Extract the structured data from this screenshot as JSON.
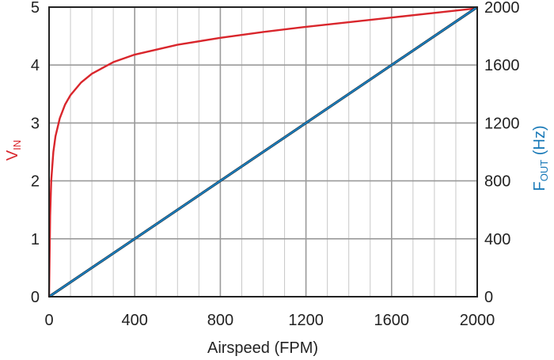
{
  "chart_data": {
    "type": "line",
    "title": "",
    "xlabel": "Airspeed (FPM)",
    "ylabel_left": {
      "main": "V",
      "sub": "IN",
      "color": "#d9262c"
    },
    "ylabel_right": {
      "main": "F",
      "sub": "OUT",
      "suffix": " (Hz)",
      "color": "#1a7ab8"
    },
    "xlim": [
      0,
      2000
    ],
    "ylim_left": [
      0,
      5
    ],
    "ylim_right": [
      0,
      2000
    ],
    "x_ticks": [
      "0",
      "400",
      "800",
      "1200",
      "1600",
      "2000"
    ],
    "y_left_ticks": [
      "0",
      "1",
      "2",
      "3",
      "4",
      "5"
    ],
    "y_right_ticks": [
      "0",
      "400",
      "800",
      "1200",
      "1600",
      "2000"
    ],
    "grid": true,
    "series": [
      {
        "axis": "left",
        "color": "#d9262c",
        "x": [
          0,
          5,
          10,
          20,
          30,
          50,
          75,
          100,
          150,
          200,
          300,
          400,
          600,
          800,
          1000,
          1200,
          1400,
          1600,
          1800,
          2000
        ],
        "y": [
          0,
          1.4,
          2.0,
          2.5,
          2.77,
          3.08,
          3.32,
          3.48,
          3.7,
          3.85,
          4.05,
          4.18,
          4.35,
          4.47,
          4.57,
          4.66,
          4.74,
          4.82,
          4.9,
          4.98
        ]
      },
      {
        "axis": "right",
        "color": "#111111",
        "x": [
          0,
          2000
        ],
        "y": [
          0,
          2000
        ]
      },
      {
        "axis": "right",
        "color": "#1a7ab8",
        "x": [
          0,
          2000
        ],
        "y": [
          0,
          2000
        ]
      }
    ]
  },
  "colors": {
    "grid_major": "#9a9a9a",
    "grid_minor": "#c8c8c8",
    "frame": "#222222"
  }
}
